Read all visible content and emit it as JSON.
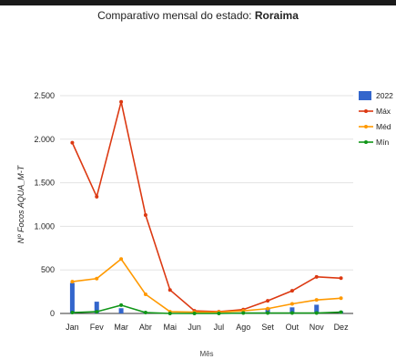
{
  "title": {
    "prefix": "Comparativo mensal do estado: ",
    "state": "Roraima"
  },
  "chart_data": {
    "type": "bar",
    "title": "Comparativo mensal do estado: Roraima",
    "xlabel": "Mês",
    "ylabel": "Nº Focos AQUA_M-T",
    "categories": [
      "Jan",
      "Fev",
      "Mar",
      "Abr",
      "Mai",
      "Jun",
      "Jul",
      "Ago",
      "Set",
      "Out",
      "Nov",
      "Dez"
    ],
    "ylim": [
      0,
      2500
    ],
    "yticks": [
      0,
      500,
      1000,
      1500,
      2000,
      2500
    ],
    "ytick_labels": [
      "0",
      "500",
      "1.000",
      "1.500",
      "2.000",
      "2.500"
    ],
    "grid": true,
    "legend_position": "right",
    "series": [
      {
        "name": "2022",
        "kind": "bar",
        "color": "#3366cc",
        "values": [
          350,
          135,
          60,
          15,
          5,
          3,
          5,
          15,
          60,
          70,
          100,
          25
        ]
      },
      {
        "name": "Máx",
        "kind": "line",
        "color": "#dc3912",
        "values": [
          1960,
          1340,
          2430,
          1130,
          270,
          30,
          20,
          45,
          145,
          260,
          420,
          405
        ]
      },
      {
        "name": "Méd",
        "kind": "line",
        "color": "#ff9900",
        "values": [
          365,
          400,
          625,
          220,
          20,
          15,
          15,
          30,
          55,
          110,
          155,
          175
        ]
      },
      {
        "name": "Mín",
        "kind": "line",
        "color": "#109618",
        "values": [
          10,
          20,
          95,
          10,
          0,
          0,
          0,
          5,
          5,
          5,
          5,
          15
        ]
      }
    ]
  }
}
